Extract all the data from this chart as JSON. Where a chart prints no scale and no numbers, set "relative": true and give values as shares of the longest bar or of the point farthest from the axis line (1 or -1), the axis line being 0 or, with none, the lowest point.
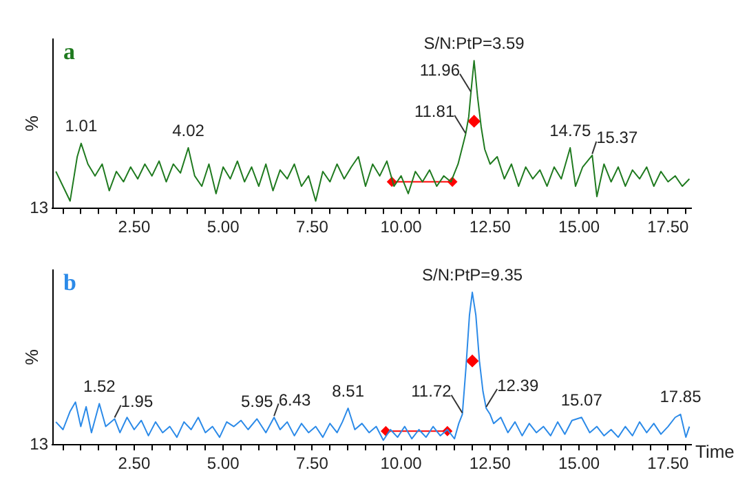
{
  "chart_data": [
    {
      "type": "line",
      "title": "a",
      "ylabel": "%",
      "relative": true,
      "xlim": [
        0.2,
        18.15
      ],
      "xticks": [
        {
          "value": 0.5,
          "label": null
        },
        {
          "value": 1,
          "label": null
        },
        {
          "value": 1.5,
          "label": null
        },
        {
          "value": 2,
          "label": null
        },
        {
          "value": 2.5,
          "label": "2.50"
        },
        {
          "value": 3,
          "label": null
        },
        {
          "value": 3.5,
          "label": null
        },
        {
          "value": 4,
          "label": null
        },
        {
          "value": 4.5,
          "label": null
        },
        {
          "value": 5,
          "label": "5.00"
        },
        {
          "value": 5.5,
          "label": null
        },
        {
          "value": 6,
          "label": null
        },
        {
          "value": 6.5,
          "label": null
        },
        {
          "value": 7,
          "label": null
        },
        {
          "value": 7.5,
          "label": "7.50"
        },
        {
          "value": 8,
          "label": null
        },
        {
          "value": 8.5,
          "label": null
        },
        {
          "value": 9,
          "label": null
        },
        {
          "value": 9.5,
          "label": null
        },
        {
          "value": 10,
          "label": "10.00"
        },
        {
          "value": 10.5,
          "label": null
        },
        {
          "value": 11,
          "label": null
        },
        {
          "value": 11.5,
          "label": null
        },
        {
          "value": 12,
          "label": null
        },
        {
          "value": 12.5,
          "label": "12.50"
        },
        {
          "value": 13,
          "label": null
        },
        {
          "value": 13.5,
          "label": null
        },
        {
          "value": 14,
          "label": null
        },
        {
          "value": 14.5,
          "label": null
        },
        {
          "value": 15,
          "label": "15.00"
        },
        {
          "value": 15.5,
          "label": null
        },
        {
          "value": 16,
          "label": null
        },
        {
          "value": 16.5,
          "label": null
        },
        {
          "value": 17,
          "label": null
        },
        {
          "value": 17.5,
          "label": "17.50"
        },
        {
          "value": 18,
          "label": null
        }
      ],
      "annotations": [
        "13",
        {
          "text": "1.01",
          "x": 1.01,
          "y": 0.44
        },
        {
          "text": "4.02",
          "x": 4.02,
          "y": 0.41
        },
        {
          "text": "11.81",
          "x": 11.81,
          "y": 0.5
        },
        {
          "text": "11.96",
          "x": 11.96,
          "y": 0.78
        },
        {
          "text": "S/N:PtP=3.59",
          "x": 12.05,
          "y": 1.0
        },
        {
          "text": "14.75",
          "x": 14.75,
          "y": 0.41
        },
        {
          "text": "15.37",
          "x": 15.37,
          "y": 0.36
        }
      ],
      "series": [
        {
          "color": "#1f7a1f",
          "x": [
            0.3,
            0.5,
            0.7,
            0.9,
            1.01,
            1.2,
            1.4,
            1.6,
            1.8,
            2.0,
            2.2,
            2.4,
            2.6,
            2.8,
            3.0,
            3.2,
            3.4,
            3.6,
            3.8,
            4.02,
            4.2,
            4.4,
            4.6,
            4.8,
            5.0,
            5.2,
            5.4,
            5.6,
            5.8,
            6.0,
            6.2,
            6.4,
            6.6,
            6.8,
            7.0,
            7.2,
            7.4,
            7.6,
            7.8,
            8.0,
            8.2,
            8.4,
            8.6,
            8.8,
            9.0,
            9.2,
            9.4,
            9.6,
            9.8,
            10.0,
            10.2,
            10.4,
            10.6,
            10.8,
            11.0,
            11.2,
            11.4,
            11.6,
            11.81,
            11.9,
            11.96,
            12.05,
            12.15,
            12.25,
            12.35,
            12.5,
            12.7,
            12.9,
            13.1,
            13.3,
            13.5,
            13.7,
            13.9,
            14.1,
            14.3,
            14.5,
            14.75,
            14.9,
            15.1,
            15.37,
            15.5,
            15.7,
            15.9,
            16.1,
            16.3,
            16.5,
            16.7,
            16.9,
            17.1,
            17.3,
            17.5,
            17.7,
            17.9,
            18.1
          ],
          "values": [
            0.25,
            0.15,
            0.05,
            0.35,
            0.44,
            0.3,
            0.22,
            0.3,
            0.12,
            0.25,
            0.18,
            0.28,
            0.2,
            0.3,
            0.22,
            0.32,
            0.18,
            0.3,
            0.24,
            0.41,
            0.22,
            0.15,
            0.3,
            0.1,
            0.28,
            0.2,
            0.32,
            0.18,
            0.28,
            0.15,
            0.3,
            0.12,
            0.26,
            0.2,
            0.3,
            0.15,
            0.22,
            0.05,
            0.25,
            0.18,
            0.3,
            0.2,
            0.28,
            0.35,
            0.15,
            0.3,
            0.22,
            0.32,
            0.15,
            0.22,
            0.1,
            0.25,
            0.18,
            0.26,
            0.15,
            0.22,
            0.18,
            0.3,
            0.5,
            0.62,
            0.78,
            1.0,
            0.75,
            0.55,
            0.4,
            0.3,
            0.35,
            0.2,
            0.3,
            0.15,
            0.28,
            0.2,
            0.26,
            0.15,
            0.28,
            0.2,
            0.41,
            0.15,
            0.28,
            0.36,
            0.08,
            0.3,
            0.18,
            0.28,
            0.15,
            0.26,
            0.2,
            0.28,
            0.15,
            0.25,
            0.18,
            0.22,
            0.15,
            0.2
          ]
        },
        {
          "type": "line",
          "marker": "diamond",
          "color": "#ff0000",
          "x": [
            9.74,
            11.44
          ],
          "values": [
            0.18,
            0.18
          ]
        },
        {
          "type": "scatter",
          "marker": "diamond",
          "color": "#ff0000",
          "x": [
            12.05
          ],
          "values": [
            0.59
          ]
        }
      ]
    },
    {
      "type": "line",
      "title": "b",
      "ylabel": "%",
      "xlabel": "Time",
      "relative": true,
      "xlim": [
        0.2,
        18.15
      ],
      "xticks": [
        {
          "value": 0.5,
          "label": null
        },
        {
          "value": 1,
          "label": null
        },
        {
          "value": 1.5,
          "label": null
        },
        {
          "value": 2,
          "label": null
        },
        {
          "value": 2.5,
          "label": "2.50"
        },
        {
          "value": 3,
          "label": null
        },
        {
          "value": 3.5,
          "label": null
        },
        {
          "value": 4,
          "label": null
        },
        {
          "value": 4.5,
          "label": null
        },
        {
          "value": 5,
          "label": "5.00"
        },
        {
          "value": 5.5,
          "label": null
        },
        {
          "value": 6,
          "label": null
        },
        {
          "value": 6.5,
          "label": null
        },
        {
          "value": 7,
          "label": null
        },
        {
          "value": 7.5,
          "label": "7.50"
        },
        {
          "value": 8,
          "label": null
        },
        {
          "value": 8.5,
          "label": null
        },
        {
          "value": 9,
          "label": null
        },
        {
          "value": 9.5,
          "label": null
        },
        {
          "value": 10,
          "label": "10.00"
        },
        {
          "value": 10.5,
          "label": null
        },
        {
          "value": 11,
          "label": null
        },
        {
          "value": 11.5,
          "label": null
        },
        {
          "value": 12,
          "label": null
        },
        {
          "value": 12.5,
          "label": "12.50"
        },
        {
          "value": 13,
          "label": null
        },
        {
          "value": 13.5,
          "label": null
        },
        {
          "value": 14,
          "label": null
        },
        {
          "value": 14.5,
          "label": null
        },
        {
          "value": 15,
          "label": "15.00"
        },
        {
          "value": 15.5,
          "label": null
        },
        {
          "value": 16,
          "label": null
        },
        {
          "value": 16.5,
          "label": null
        },
        {
          "value": 17,
          "label": null
        },
        {
          "value": 17.5,
          "label": "17.50"
        },
        {
          "value": 18,
          "label": null
        }
      ],
      "annotations": [
        "13",
        {
          "text": "1.52",
          "x": 1.52,
          "y": 0.27
        },
        {
          "text": "1.95",
          "x": 1.95,
          "y": 0.17
        },
        {
          "text": "5.95",
          "x": 5.95,
          "y": 0.17
        },
        {
          "text": "6.43",
          "x": 6.43,
          "y": 0.18
        },
        {
          "text": "8.51",
          "x": 8.51,
          "y": 0.24
        },
        {
          "text": "11.72",
          "x": 11.72,
          "y": 0.2
        },
        {
          "text": "S/N:PtP=9.35",
          "x": 12.0,
          "y": 1.0
        },
        {
          "text": "12.39",
          "x": 12.39,
          "y": 0.24
        },
        {
          "text": "15.07",
          "x": 15.07,
          "y": 0.18
        },
        {
          "text": "17.85",
          "x": 17.85,
          "y": 0.2
        }
      ],
      "series": [
        {
          "color": "#2b8ae8",
          "x": [
            0.3,
            0.5,
            0.7,
            0.85,
            1.0,
            1.15,
            1.3,
            1.52,
            1.7,
            1.95,
            2.1,
            2.3,
            2.5,
            2.7,
            2.9,
            3.1,
            3.3,
            3.5,
            3.7,
            3.9,
            4.1,
            4.3,
            4.5,
            4.7,
            4.9,
            5.1,
            5.3,
            5.5,
            5.7,
            5.95,
            6.2,
            6.43,
            6.6,
            6.8,
            7.0,
            7.2,
            7.4,
            7.6,
            7.8,
            8.0,
            8.2,
            8.35,
            8.51,
            8.7,
            8.9,
            9.1,
            9.3,
            9.5,
            9.7,
            9.9,
            10.1,
            10.3,
            10.5,
            10.7,
            10.9,
            11.1,
            11.3,
            11.5,
            11.62,
            11.72,
            11.82,
            11.92,
            12.0,
            12.1,
            12.2,
            12.3,
            12.39,
            12.5,
            12.6,
            12.8,
            13.0,
            13.2,
            13.4,
            13.6,
            13.8,
            14.0,
            14.2,
            14.4,
            14.6,
            14.8,
            15.07,
            15.3,
            15.5,
            15.7,
            15.9,
            16.1,
            16.3,
            16.5,
            16.7,
            16.9,
            17.1,
            17.3,
            17.5,
            17.7,
            17.85,
            18.0,
            18.1
          ],
          "values": [
            0.15,
            0.1,
            0.22,
            0.28,
            0.12,
            0.25,
            0.08,
            0.27,
            0.12,
            0.17,
            0.08,
            0.18,
            0.1,
            0.16,
            0.06,
            0.15,
            0.08,
            0.12,
            0.05,
            0.15,
            0.1,
            0.18,
            0.08,
            0.12,
            0.05,
            0.15,
            0.12,
            0.16,
            0.1,
            0.17,
            0.08,
            0.18,
            0.1,
            0.15,
            0.06,
            0.14,
            0.08,
            0.12,
            0.05,
            0.14,
            0.08,
            0.15,
            0.24,
            0.1,
            0.14,
            0.08,
            0.12,
            0.03,
            0.1,
            0.05,
            0.12,
            0.04,
            0.1,
            0.05,
            0.12,
            0.06,
            0.1,
            0.04,
            0.14,
            0.2,
            0.5,
            0.85,
            1.0,
            0.85,
            0.55,
            0.35,
            0.24,
            0.2,
            0.14,
            0.18,
            0.08,
            0.15,
            0.06,
            0.14,
            0.08,
            0.12,
            0.06,
            0.15,
            0.07,
            0.16,
            0.18,
            0.08,
            0.12,
            0.06,
            0.1,
            0.05,
            0.12,
            0.06,
            0.15,
            0.08,
            0.14,
            0.07,
            0.12,
            0.18,
            0.2,
            0.05,
            0.12
          ]
        },
        {
          "type": "line",
          "marker": "diamond",
          "color": "#ff0000",
          "x": [
            9.57,
            11.3
          ],
          "values": [
            0.09,
            0.09
          ]
        },
        {
          "type": "scatter",
          "marker": "diamond",
          "color": "#ff0000",
          "x": [
            12.0
          ],
          "values": [
            0.55
          ]
        }
      ]
    }
  ]
}
